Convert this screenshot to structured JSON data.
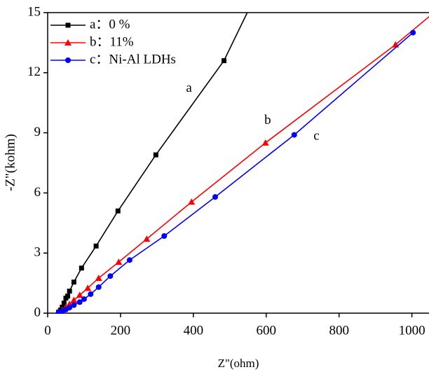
{
  "chart_data": {
    "type": "line",
    "xlabel": "Z\"(ohm)",
    "ylabel": "-Z\"(kohm)",
    "xlim": [
      0,
      1045
    ],
    "ylim": [
      0,
      15
    ],
    "xticks": [
      0,
      200,
      400,
      600,
      800,
      1000
    ],
    "yticks": [
      0,
      3,
      6,
      9,
      12,
      15
    ],
    "legend": "upper left",
    "series": [
      {
        "name": "a：0 %",
        "color": "#000000",
        "marker": "square",
        "x": [
          30,
          35,
          40,
          45,
          50,
          55,
          60,
          72,
          93,
          133,
          193,
          297,
          484,
          580
        ],
        "values": [
          0.05,
          0.15,
          0.3,
          0.5,
          0.75,
          0.85,
          1.1,
          1.55,
          2.25,
          3.35,
          5.1,
          7.9,
          12.6,
          16.2
        ]
      },
      {
        "name": "b：11%",
        "color": "#ff0000",
        "marker": "triangle",
        "x": [
          30,
          40,
          50,
          60,
          72,
          88,
          110,
          140,
          195,
          272,
          395,
          598,
          955,
          1100
        ],
        "values": [
          0.05,
          0.15,
          0.3,
          0.45,
          0.65,
          0.9,
          1.25,
          1.75,
          2.55,
          3.7,
          5.55,
          8.5,
          13.4,
          15.6
        ]
      },
      {
        "name": "c：Ni-Al LDHs",
        "color": "#0000ff",
        "marker": "circle",
        "x": [
          30,
          40,
          50,
          60,
          72,
          88,
          100,
          118,
          140,
          172,
          225,
          320,
          460,
          677,
          1003
        ],
        "values": [
          0.03,
          0.1,
          0.18,
          0.28,
          0.4,
          0.55,
          0.7,
          0.95,
          1.3,
          1.85,
          2.65,
          3.85,
          5.8,
          8.9,
          14.0
        ]
      }
    ],
    "annotations": [
      {
        "text": "a",
        "x": 388,
        "y": 11.2
      },
      {
        "text": "b",
        "x": 604,
        "y": 9.6
      },
      {
        "text": "c",
        "x": 738,
        "y": 8.8
      }
    ]
  }
}
